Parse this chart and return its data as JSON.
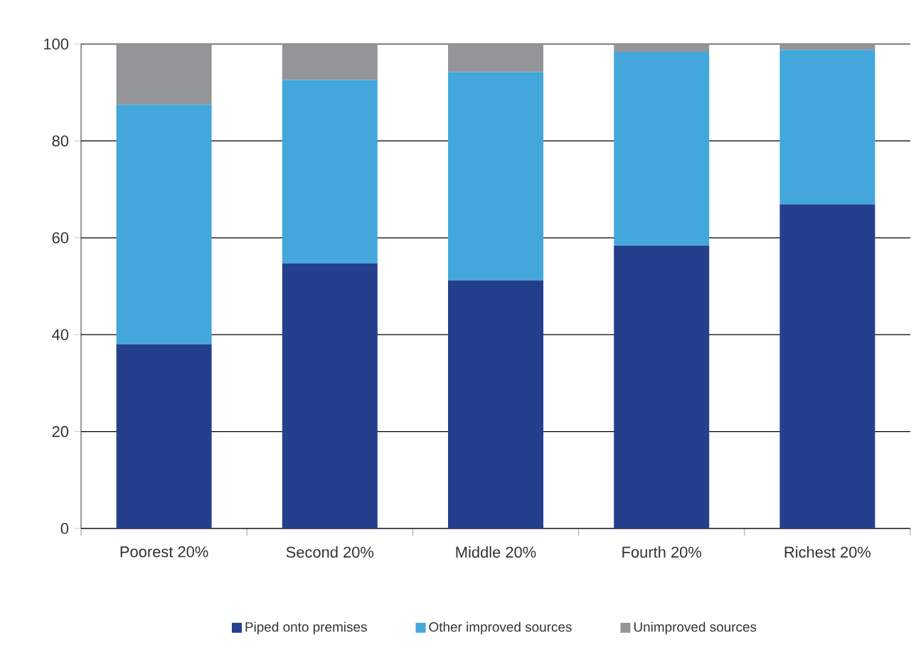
{
  "chart_data": {
    "type": "bar",
    "stacked": true,
    "categories": [
      "Poorest 20%",
      "Second 20%",
      "Middle 20%",
      "Fourth 20%",
      "Richest 20%"
    ],
    "series": [
      {
        "name": "Piped onto premises",
        "color": "#243f8c",
        "values": [
          38,
          54.7,
          51.2,
          58.4,
          66.9
        ]
      },
      {
        "name": "Other improved sources",
        "color": "#43a7dc",
        "values": [
          49.5,
          37.9,
          43,
          40,
          31.9
        ]
      },
      {
        "name": "Unimproved sources",
        "color": "#939598",
        "values": [
          12.5,
          7.4,
          5.8,
          1.6,
          1.2
        ]
      }
    ],
    "ylim": [
      0,
      100
    ],
    "yticks": [
      0,
      20,
      40,
      60,
      80,
      100
    ],
    "grid": "y",
    "legend": "bottom"
  }
}
